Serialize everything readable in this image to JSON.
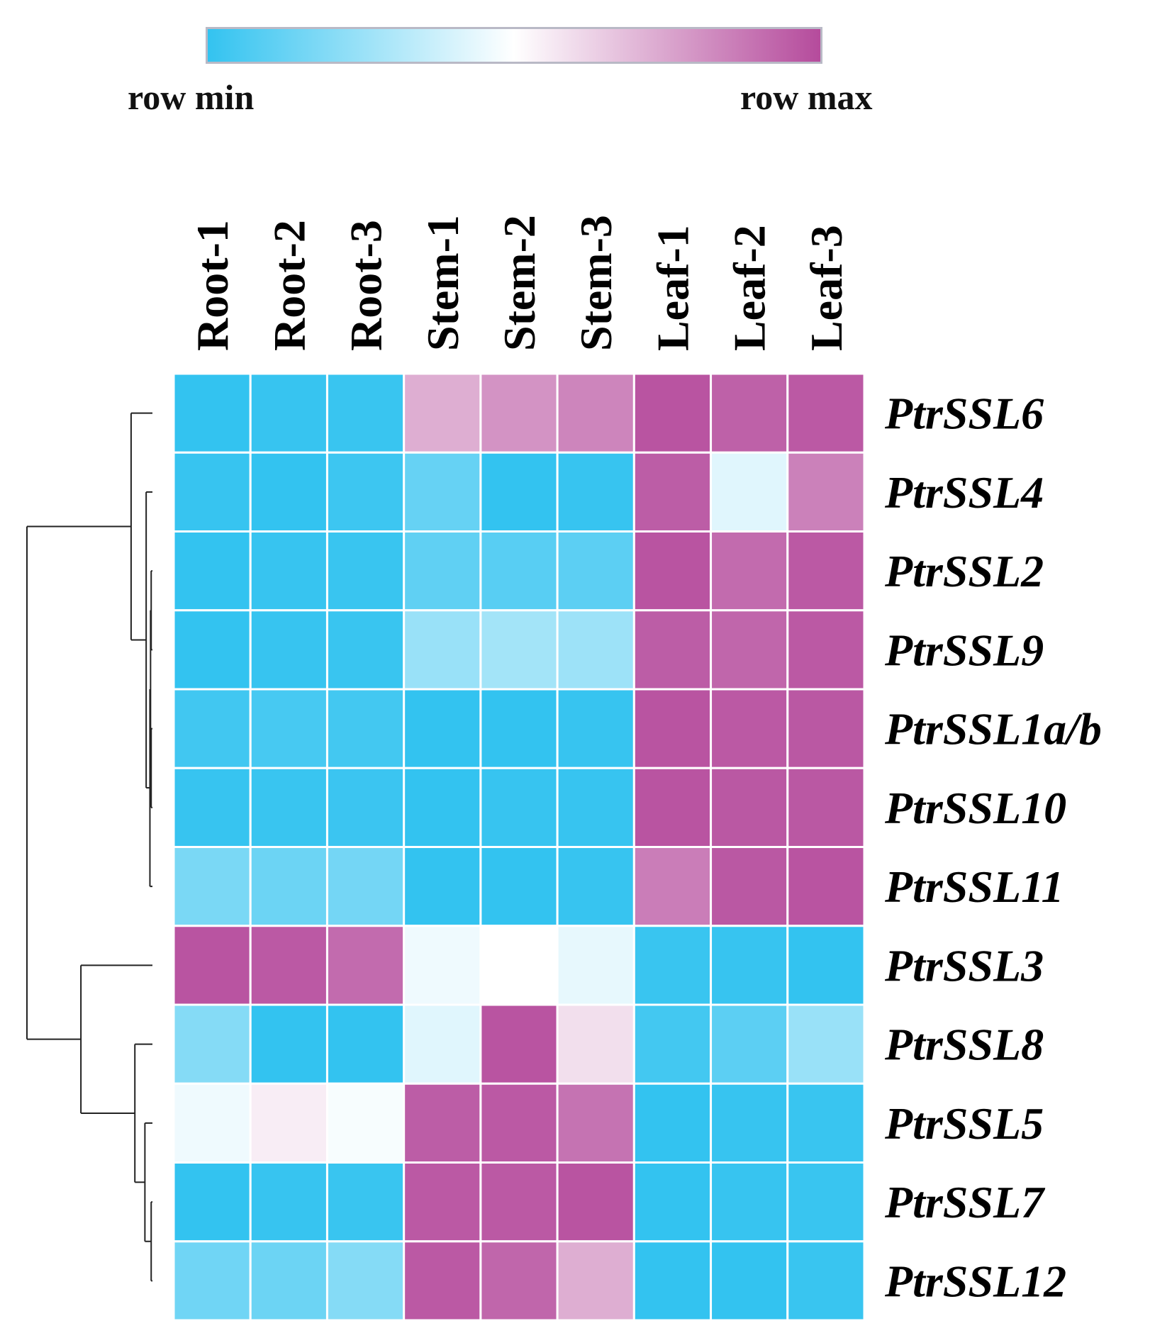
{
  "chart_data": {
    "type": "heatmap",
    "colorbar": {
      "min_label": "row min",
      "max_label": "row max",
      "low_color": "#33c3f0",
      "mid_color": "#ffffff",
      "high_color": "#b54b9c"
    },
    "columns": [
      "Root-1",
      "Root-2",
      "Root-3",
      "Stem-1",
      "Stem-2",
      "Stem-3",
      "Leaf-1",
      "Leaf-2",
      "Leaf-3"
    ],
    "rows": [
      "PtrSSL6",
      "PtrSSL4",
      "PtrSSL2",
      "PtrSSL9",
      "PtrSSL1a/b",
      "PtrSSL10",
      "PtrSSL11",
      "PtrSSL3",
      "PtrSSL8",
      "PtrSSL5",
      "PtrSSL7",
      "PtrSSL12"
    ],
    "values": [
      [
        -1.0,
        -0.98,
        -0.97,
        0.45,
        0.6,
        0.68,
        0.95,
        0.88,
        0.92
      ],
      [
        -0.98,
        -1.0,
        -0.95,
        -0.75,
        -1.0,
        -0.98,
        0.9,
        -0.15,
        0.7
      ],
      [
        -1.0,
        -0.98,
        -0.97,
        -0.78,
        -0.82,
        -0.8,
        0.95,
        0.82,
        0.92
      ],
      [
        -1.0,
        -0.98,
        -0.97,
        -0.5,
        -0.45,
        -0.48,
        0.9,
        0.85,
        0.92
      ],
      [
        -0.93,
        -0.9,
        -0.92,
        -1.0,
        -1.0,
        -0.98,
        0.95,
        0.92,
        0.93
      ],
      [
        -0.98,
        -0.97,
        -0.96,
        -1.0,
        -0.98,
        -0.98,
        0.95,
        0.93,
        0.93
      ],
      [
        -0.65,
        -0.72,
        -0.68,
        -1.0,
        -1.0,
        -0.98,
        0.72,
        0.93,
        0.95
      ],
      [
        0.95,
        0.92,
        0.82,
        -0.08,
        0.0,
        -0.12,
        -0.97,
        -0.98,
        -1.0
      ],
      [
        -0.6,
        -1.0,
        -1.0,
        -0.15,
        0.95,
        0.18,
        -0.92,
        -0.8,
        -0.5
      ],
      [
        -0.08,
        0.1,
        -0.04,
        0.9,
        0.92,
        0.78,
        -1.0,
        -0.98,
        -0.97
      ],
      [
        -1.0,
        -0.98,
        -0.97,
        0.92,
        0.92,
        0.95,
        -1.0,
        -0.98,
        -0.97
      ],
      [
        -0.7,
        -0.72,
        -0.6,
        0.92,
        0.85,
        0.45,
        -1.0,
        -1.0,
        -0.97
      ]
    ],
    "dendrogram": {
      "leaf_order": [
        "PtrSSL6",
        "PtrSSL4",
        "PtrSSL2",
        "PtrSSL9",
        "PtrSSL1a/b",
        "PtrSSL10",
        "PtrSSL11",
        "PtrSSL3",
        "PtrSSL8",
        "PtrSSL5",
        "PtrSSL7",
        "PtrSSL12"
      ],
      "merges": [
        {
          "left": 2,
          "right": 3,
          "height": 0.01
        },
        {
          "left": 4,
          "right": 5,
          "height": 0.01
        },
        {
          "left": "m0",
          "right": "m1",
          "height": 0.015
        },
        {
          "left": "m2",
          "right": 6,
          "height": 0.02
        },
        {
          "left": 1,
          "right": "m3",
          "height": 0.05
        },
        {
          "left": 0,
          "right": "m4",
          "height": 0.17
        },
        {
          "left": 10,
          "right": 11,
          "height": 0.01
        },
        {
          "left": 9,
          "right": "m6",
          "height": 0.06
        },
        {
          "left": 8,
          "right": "m7",
          "height": 0.14
        },
        {
          "left": 7,
          "right": "m8",
          "height": 0.57
        },
        {
          "left": "m5",
          "right": "m9",
          "height": 1.0
        }
      ]
    }
  }
}
